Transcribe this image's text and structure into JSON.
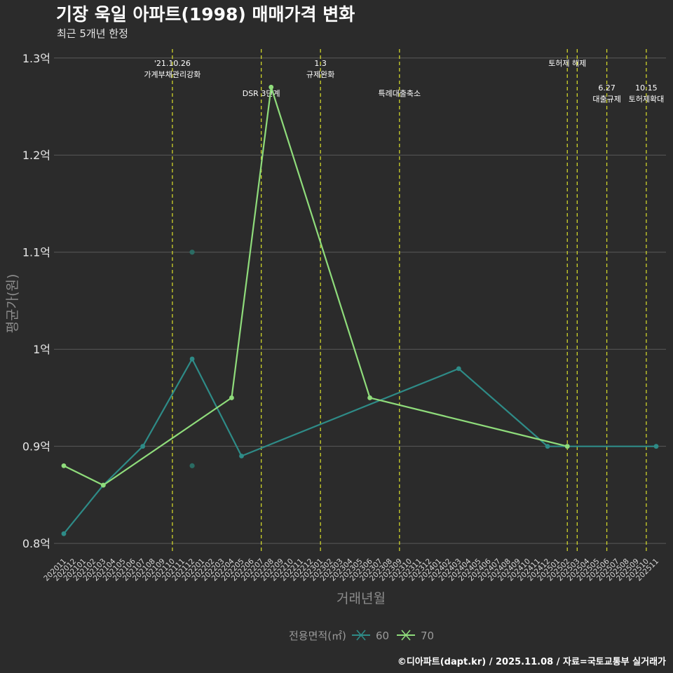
{
  "chart_data": {
    "type": "line",
    "title": "기장 욱일 아파트(1998) 매매가격 변화",
    "subtitle": "최근 5개년 한정",
    "xlabel": "거래년월",
    "ylabel": "평균가(원)",
    "ylim": [
      0.79,
      1.315
    ],
    "y_ticks": [
      {
        "value": 0.8,
        "label": "0.8억"
      },
      {
        "value": 0.9,
        "label": "0.9억"
      },
      {
        "value": 1.0,
        "label": "1억"
      },
      {
        "value": 1.1,
        "label": "1.1억"
      },
      {
        "value": 1.2,
        "label": "1.2억"
      },
      {
        "value": 1.3,
        "label": "1.3억"
      }
    ],
    "categories": [
      "202011",
      "202012",
      "202101",
      "202102",
      "202103",
      "202104",
      "202105",
      "202106",
      "202107",
      "202108",
      "202109",
      "202110",
      "202111",
      "202112",
      "202201",
      "202202",
      "202203",
      "202204",
      "202205",
      "202206",
      "202207",
      "202208",
      "202209",
      "202210",
      "202211",
      "202212",
      "202301",
      "202302",
      "202303",
      "202304",
      "202305",
      "202306",
      "202307",
      "202308",
      "202309",
      "202310",
      "202311",
      "202312",
      "202401",
      "202402",
      "202403",
      "202404",
      "202405",
      "202406",
      "202407",
      "202408",
      "202409",
      "202410",
      "202411",
      "202412",
      "202501",
      "202502",
      "202503",
      "202504",
      "202505",
      "202506",
      "202507",
      "202508",
      "202509",
      "202510",
      "202511"
    ],
    "series": [
      {
        "name": "60",
        "color": "#2e8b87",
        "points": [
          {
            "x": "202011",
            "y": 0.81
          },
          {
            "x": "202103",
            "y": 0.86
          },
          {
            "x": "202107",
            "y": 0.9
          },
          {
            "x": "202112",
            "y": 0.99
          },
          {
            "x": "202205",
            "y": 0.89
          },
          {
            "x": "202403",
            "y": 0.98
          },
          {
            "x": "202412",
            "y": 0.9
          },
          {
            "x": "202502",
            "y": 0.9
          },
          {
            "x": "202511",
            "y": 0.9
          }
        ],
        "scatter": [
          {
            "x": "202112",
            "y": 1.1
          },
          {
            "x": "202112",
            "y": 0.88
          }
        ]
      },
      {
        "name": "70",
        "color": "#8fdc7b",
        "points": [
          {
            "x": "202011",
            "y": 0.88
          },
          {
            "x": "202103",
            "y": 0.86
          },
          {
            "x": "202204",
            "y": 0.95
          },
          {
            "x": "202208",
            "y": 1.27
          },
          {
            "x": "202306",
            "y": 0.95
          },
          {
            "x": "202502",
            "y": 0.9
          }
        ]
      }
    ],
    "events": [
      {
        "x": "202110",
        "lines": [
          "'21.10.26",
          "가계부채관리강화"
        ],
        "level": 0
      },
      {
        "x": "202207",
        "lines": [
          "DSR 3단계"
        ],
        "level": 1
      },
      {
        "x": "202301",
        "lines": [
          "1.3",
          "규제완화"
        ],
        "level": 0
      },
      {
        "x": "202309",
        "lines": [
          "특례대출축소"
        ],
        "level": 1
      },
      {
        "x": "202502",
        "lines": [
          "토허제 해제"
        ],
        "level": 0
      },
      {
        "x": "202503",
        "lines": [],
        "level": 0
      },
      {
        "x": "202506",
        "lines": [
          "6.27",
          "대출규제"
        ],
        "level": 2
      },
      {
        "x": "202510",
        "lines": [
          "10.15",
          "토허제확대"
        ],
        "level": 2
      }
    ],
    "legend": {
      "title": "전용면적(㎡)",
      "position": "bottom"
    },
    "caption": "©디아파트(dapt.kr) / 2025.11.08 / 자료=국토교통부 실거래가"
  }
}
